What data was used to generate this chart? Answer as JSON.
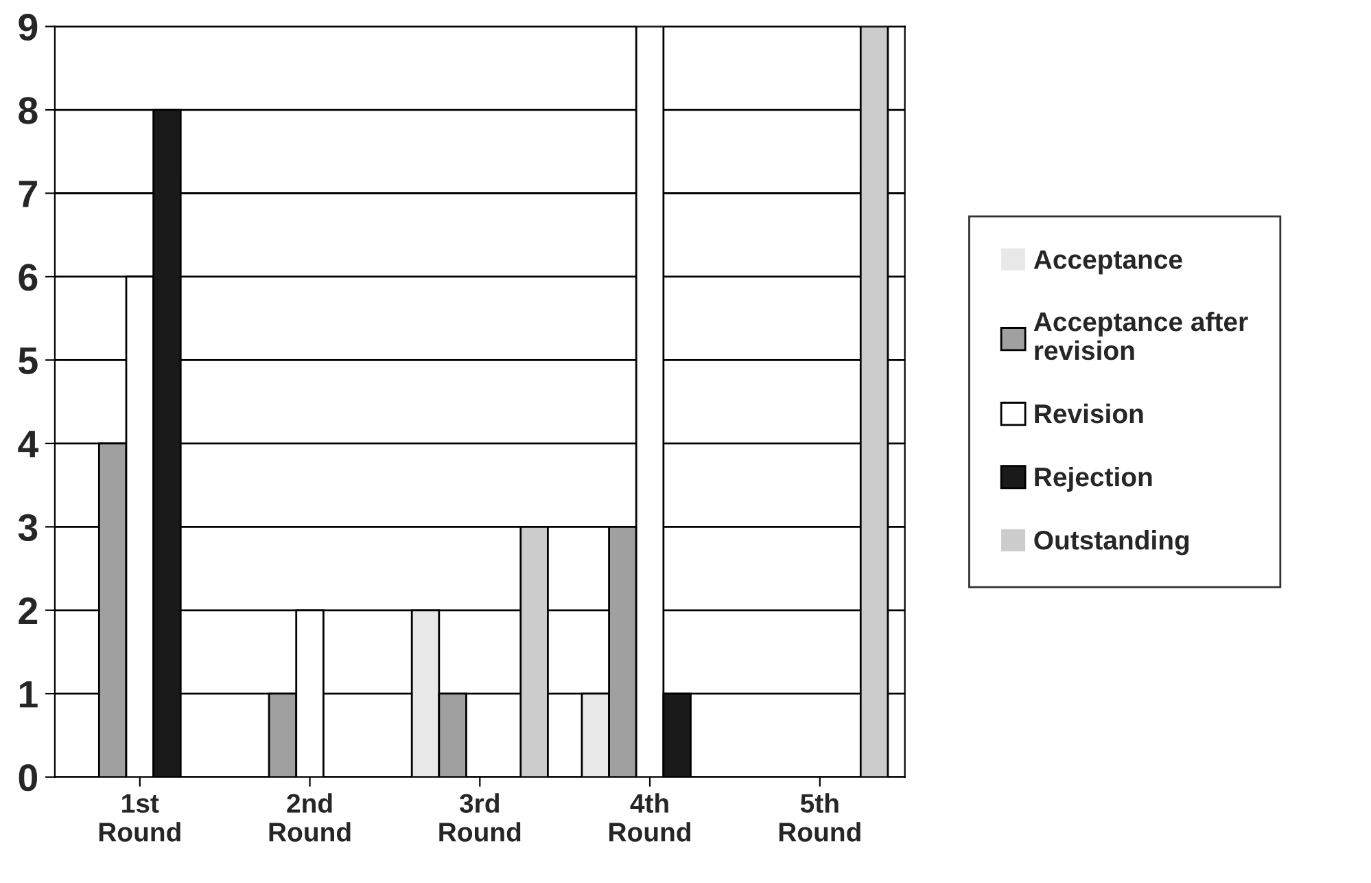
{
  "chart_data": {
    "type": "bar",
    "categories": [
      "1st Round",
      "2nd Round",
      "3rd Round",
      "4th Round",
      "5th Round"
    ],
    "series": [
      {
        "name": "Acceptance",
        "color": "#e8e8e8",
        "values": [
          0,
          0,
          2,
          1,
          0
        ]
      },
      {
        "name": "Acceptance after revision",
        "color": "#a0a0a0",
        "values": [
          4,
          1,
          1,
          3,
          0
        ]
      },
      {
        "name": "Revision",
        "color": "#ffffff",
        "values": [
          6,
          2,
          0,
          9,
          0
        ]
      },
      {
        "name": "Rejection",
        "color": "#1a1a1a",
        "values": [
          8,
          0,
          0,
          1,
          0
        ]
      },
      {
        "name": "Outstanding",
        "color": "#cccccc",
        "values": [
          0,
          0,
          3,
          0,
          9
        ]
      }
    ],
    "ylim": [
      0,
      9
    ],
    "yticks": [
      0,
      1,
      2,
      3,
      4,
      5,
      6,
      7,
      8,
      9
    ],
    "grid": "y",
    "legend": "right"
  }
}
